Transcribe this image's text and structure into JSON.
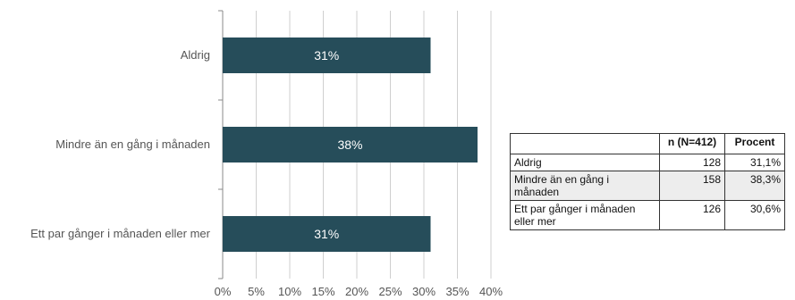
{
  "chart_data": {
    "type": "bar",
    "orientation": "horizontal",
    "categories": [
      "Aldrig",
      "Mindre än en gång i månaden",
      "Ett par gånger i månaden eller mer"
    ],
    "values": [
      31,
      38,
      31
    ],
    "data_labels": [
      "31%",
      "38%",
      "31%"
    ],
    "xlim": [
      0,
      40
    ],
    "x_ticks": [
      "0%",
      "5%",
      "10%",
      "15%",
      "20%",
      "25%",
      "30%",
      "35%",
      "40%"
    ],
    "grid": true,
    "bar_color": "#264d5a"
  },
  "table": {
    "headers": [
      "",
      "n (N=412)",
      "Procent"
    ],
    "rows": [
      {
        "label": "Aldrig",
        "n": "128",
        "pct": "31,1%"
      },
      {
        "label": "Mindre än en gång i månaden",
        "n": "158",
        "pct": "38,3%"
      },
      {
        "label": "Ett par gånger i månaden eller mer",
        "n": "126",
        "pct": "30,6%"
      }
    ]
  }
}
